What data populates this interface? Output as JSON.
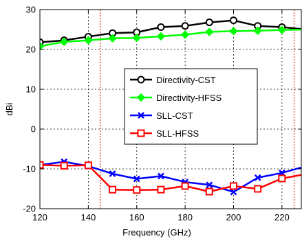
{
  "chart_data": {
    "type": "line",
    "title": "",
    "xlabel": "Frequency (GHz)",
    "ylabel": "dBi",
    "xlim": [
      120,
      228
    ],
    "ylim": [
      -20,
      30
    ],
    "xticks": [
      120,
      140,
      160,
      180,
      200,
      220
    ],
    "yticks": [
      -20,
      -10,
      0,
      10,
      20,
      30
    ],
    "grid": true,
    "legend_position": "center-right",
    "vertical_markers": [
      145,
      225
    ],
    "x": [
      120,
      130,
      140,
      150,
      160,
      170,
      180,
      190,
      200,
      210,
      220,
      230
    ],
    "series": [
      {
        "name": "Directivity-CST",
        "color": "#000000",
        "marker": "circle",
        "values": [
          21.8,
          22.3,
          23.2,
          24.1,
          24.3,
          25.6,
          25.9,
          26.8,
          27.3,
          25.9,
          25.6,
          25.0
        ]
      },
      {
        "name": "Directivity-HFSS",
        "color": "#00ff00",
        "marker": "diamond",
        "values": [
          20.8,
          21.9,
          22.3,
          22.8,
          22.9,
          23.3,
          23.7,
          24.4,
          24.6,
          24.7,
          24.9,
          25.0
        ]
      },
      {
        "name": "SLL-CST",
        "color": "#0000ff",
        "marker": "x",
        "values": [
          -9.0,
          -8.2,
          -9.3,
          -11.2,
          -12.5,
          -11.8,
          -13.3,
          -14.0,
          -15.8,
          -12.2,
          -11.0,
          -9.3
        ]
      },
      {
        "name": "SLL-HFSS",
        "color": "#ff0000",
        "marker": "square",
        "values": [
          -9.0,
          -9.2,
          -9.1,
          -15.2,
          -15.3,
          -15.2,
          -14.3,
          -15.7,
          -14.3,
          -15.0,
          -12.4,
          -11.3
        ]
      }
    ]
  }
}
